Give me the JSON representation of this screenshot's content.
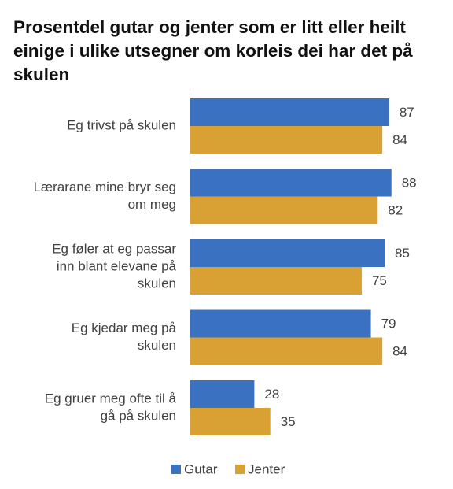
{
  "chart_data": {
    "type": "bar",
    "orientation": "horizontal",
    "title": "Prosentdel gutar og jenter som er litt eller heilt einige i ulike utsegner om korleis dei har det på skulen",
    "categories": [
      [
        "Eg trivst på skulen"
      ],
      [
        "Lærarane mine bryr seg",
        "om meg"
      ],
      [
        "Eg føler at eg passar",
        "inn blant elevane på",
        "skulen"
      ],
      [
        "Eg kjedar meg på",
        "skulen"
      ],
      [
        "Eg gruer meg ofte til å",
        "gå på skulen"
      ]
    ],
    "series": [
      {
        "name": "Gutar",
        "color": "#3a71c1",
        "values": [
          87,
          88,
          85,
          79,
          28
        ]
      },
      {
        "name": "Jenter",
        "color": "#d9a133",
        "values": [
          84,
          82,
          75,
          84,
          35
        ]
      }
    ],
    "xlim": [
      0,
      100
    ],
    "grid": false,
    "legend_position": "bottom"
  }
}
